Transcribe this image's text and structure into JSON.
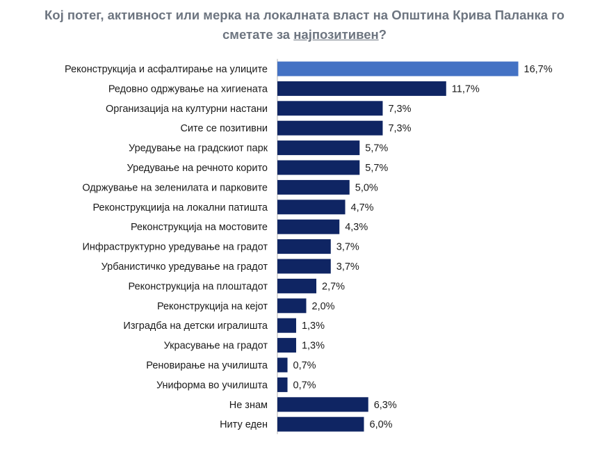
{
  "chart_data": {
    "type": "bar",
    "orientation": "horizontal",
    "title_line1": "Кој потег, активност или мерка на локалната власт на Општина Крива Паланка го",
    "title_line2_prefix": "сметате за ",
    "title_line2_emphasis": "најпозитивен",
    "title_line2_suffix": "?",
    "categories": [
      "Реконструкција и асфалтирање на улиците",
      "Редовно одржување на хигиената",
      "Организација на културни настани",
      "Сите се позитивни",
      "Уредување на градскиот парк",
      "Уредување на речното корито",
      "Одржување на зеленилата и парковите",
      "Реконструкциија на локални патишта",
      "Реконструкција на мостовите",
      "Инфраструктурно уредување на градот",
      "Урбанистичко уредување на градот",
      "Реконструкција на плоштадот",
      "Реконструкција на кејот",
      "Изградба на детски игралишта",
      "Украсување на градот",
      "Реновирање на училишта",
      "Униформа во училишта",
      "Не знам",
      "Ниту еден"
    ],
    "values": [
      16.7,
      11.7,
      7.3,
      7.3,
      5.7,
      5.7,
      5.0,
      4.7,
      4.3,
      3.7,
      3.7,
      2.7,
      2.0,
      1.3,
      1.3,
      0.7,
      0.7,
      6.3,
      6.0
    ],
    "value_labels": [
      "16,7%",
      "11,7%",
      "7,3%",
      "7,3%",
      "5,7%",
      "5,7%",
      "5,0%",
      "4,7%",
      "4,3%",
      "3,7%",
      "3,7%",
      "2,7%",
      "2,0%",
      "1,3%",
      "1,3%",
      "0,7%",
      "0,7%",
      "6,3%",
      "6,0%"
    ],
    "highlight_index": 0,
    "colors": {
      "highlight": "#4472c4",
      "bar": "#0f2563",
      "axis": "#b0b0b0",
      "title": "#6d7580"
    },
    "grid": false,
    "legend": "none"
  }
}
